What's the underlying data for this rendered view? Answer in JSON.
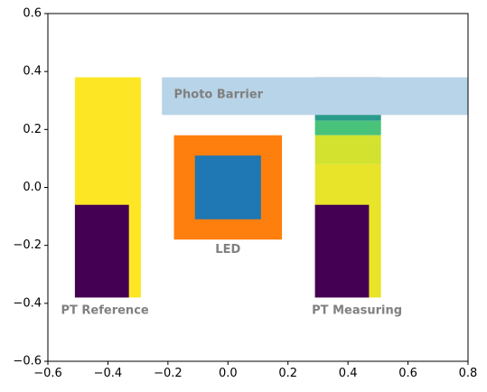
{
  "chart_data": {
    "type": "diagram",
    "xlim": [
      -0.6,
      0.8
    ],
    "ylim": [
      -0.6,
      0.6
    ],
    "x_ticks": [
      -0.6,
      -0.4,
      -0.2,
      0.0,
      0.2,
      0.4,
      0.6,
      0.8
    ],
    "y_ticks": [
      -0.6,
      -0.4,
      -0.2,
      0.0,
      0.2,
      0.4,
      0.6
    ],
    "x_tick_labels": [
      "−0.6",
      "−0.4",
      "−0.2",
      "0.0",
      "0.2",
      "0.4",
      "0.6",
      "0.8"
    ],
    "y_tick_labels": [
      "−0.6",
      "−0.4",
      "−0.2",
      "0.0",
      "0.2",
      "0.4",
      "0.6"
    ],
    "grid": false,
    "shapes": [
      {
        "id": "pt-reference-strip",
        "x": [
          -0.51,
          -0.29
        ],
        "y": [
          -0.38,
          0.38
        ],
        "color": "#fde725"
      },
      {
        "id": "pt-reference-block",
        "x": [
          -0.51,
          -0.33
        ],
        "y": [
          -0.38,
          -0.06
        ],
        "color": "#440154"
      },
      {
        "id": "photo-barrier",
        "x": [
          -0.22,
          0.8
        ],
        "y": [
          0.25,
          0.38
        ],
        "color": "#b8d4e8"
      },
      {
        "id": "led-outer",
        "x": [
          -0.18,
          0.18
        ],
        "y": [
          -0.18,
          0.18
        ],
        "color": "#ff7f0e"
      },
      {
        "id": "led-inner",
        "x": [
          -0.11,
          0.11
        ],
        "y": [
          -0.11,
          0.11
        ],
        "color": "#1f77b4"
      },
      {
        "id": "pt-measuring-strip",
        "x": [
          0.29,
          0.51
        ],
        "y": [
          -0.38,
          0.38
        ],
        "color": "#fde725"
      },
      {
        "id": "pt-measuring-block",
        "x": [
          0.29,
          0.47
        ],
        "y": [
          -0.38,
          -0.06
        ],
        "color": "#440154"
      }
    ],
    "pt_measuring_gradient": [
      {
        "y": [
          0.32,
          0.38
        ],
        "color": "#3b2a7a"
      },
      {
        "y": [
          0.29,
          0.32
        ],
        "color": "#3f5f92"
      },
      {
        "y": [
          0.26,
          0.29
        ],
        "color": "#357e90"
      },
      {
        "y": [
          0.23,
          0.26
        ],
        "color": "#2a9b8a"
      },
      {
        "y": [
          0.18,
          0.23
        ],
        "color": "#49c27a"
      },
      {
        "y": [
          0.08,
          0.18
        ],
        "color": "#d2e22e"
      },
      {
        "y": [
          -0.38,
          0.08
        ],
        "color": "#e8e42a"
      }
    ],
    "annotations": [
      {
        "id": "photo-barrier-label",
        "text": "Photo Barrier",
        "x": -0.18,
        "y": 0.32
      },
      {
        "id": "led-label",
        "text": "LED",
        "x": 0.0,
        "y": -0.215
      },
      {
        "id": "pt-reference-label",
        "text": "PT Reference",
        "x": -0.41,
        "y": -0.425
      },
      {
        "id": "pt-measuring-label",
        "text": "PT Measuring",
        "x": 0.43,
        "y": -0.425
      }
    ]
  }
}
